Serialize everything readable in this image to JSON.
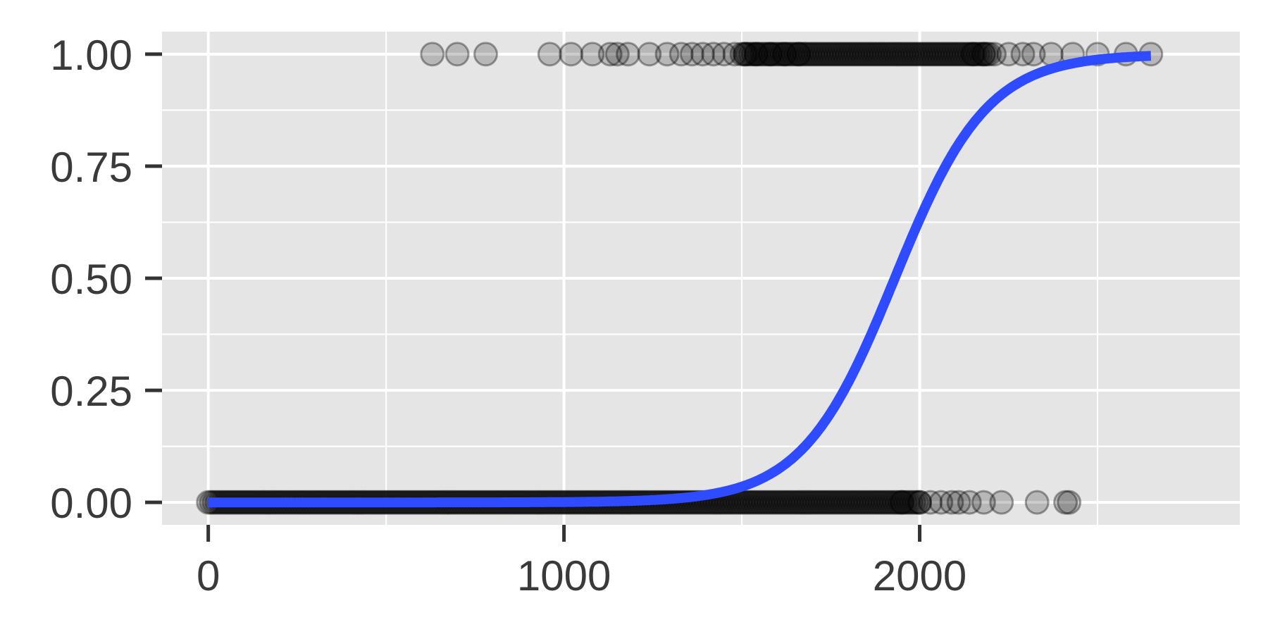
{
  "chart_data": {
    "type": "scatter",
    "title": "",
    "xlabel": "",
    "ylabel": "",
    "xlim": [
      -130,
      2900
    ],
    "ylim": [
      -0.05,
      1.05
    ],
    "x_ticks": [
      0,
      1000,
      2000
    ],
    "x_tick_labels": [
      "0",
      "1000",
      "2000"
    ],
    "x_minor_gridlines": [
      500,
      1500,
      2500
    ],
    "y_ticks": [
      0,
      0.25,
      0.5,
      0.75,
      1
    ],
    "y_tick_labels": [
      "0.00",
      "0.25",
      "0.50",
      "0.75",
      "1.00"
    ],
    "y_minor_gridlines": [
      0.125,
      0.375,
      0.625,
      0.875
    ],
    "grid": true,
    "legend": "none",
    "colors": {
      "panel_background": "#e5e5e5",
      "gridline": "#ffffff",
      "points": "#000000",
      "fit_line": "#2f4bff",
      "confidence_band": "#c4c4c4",
      "tick_text": "#3a3a3a"
    },
    "series": [
      {
        "kind": "points",
        "y": 1,
        "x_isolated": [
          630,
          700,
          780,
          960,
          1020,
          1080,
          1130,
          1150,
          1180,
          1240,
          1290,
          1330,
          1360,
          1390,
          1420,
          1450,
          1480,
          1510,
          1540,
          1580,
          1620,
          1660,
          2150,
          2180,
          2210,
          2250,
          2290,
          2320,
          2370,
          2430,
          2500,
          2580,
          2650
        ],
        "x_dense_range": [
          1500,
          2200
        ]
      },
      {
        "kind": "points",
        "y": 0,
        "x_dense_range": [
          0,
          2000
        ],
        "x_isolated": [
          1950,
          2000,
          2030,
          2060,
          2090,
          2110,
          2140,
          2180,
          2230,
          2330,
          2410,
          2420
        ]
      },
      {
        "kind": "logistic_fit",
        "midpoint": 1930,
        "slope": 0.0077,
        "x_range": [
          0,
          2650
        ],
        "band_halfwidth": 0.025
      }
    ]
  }
}
